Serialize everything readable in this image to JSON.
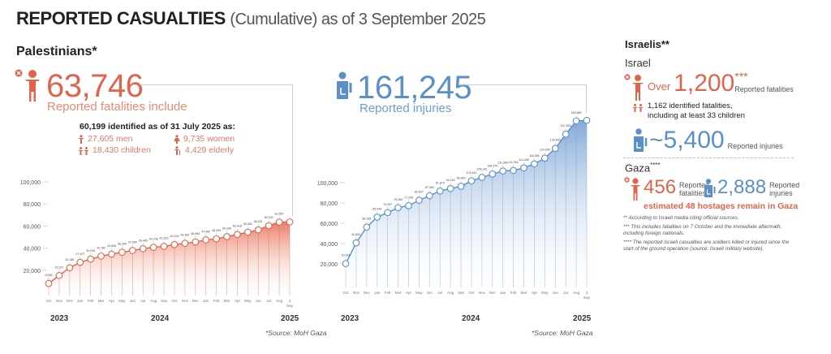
{
  "header": {
    "title_bold": "REPORTED CASUALTIES",
    "title_rest": "(Cumulative) as of 3 September 2025"
  },
  "palestinians": {
    "section_title": "Palestinians*",
    "fatalities": {
      "value": "63,746",
      "caption": "Reported fatalities include",
      "icon": "person-killed-icon",
      "color": "#e0644c"
    },
    "identified": {
      "heading": "60,199 identified as of 31 July 2025 as:",
      "items": [
        {
          "label": "27,605 men",
          "icon": "man-icon"
        },
        {
          "label": "9,735 women",
          "icon": "woman-icon"
        },
        {
          "label": "18,430 children",
          "icon": "children-icon"
        },
        {
          "label": "4,429 elderly",
          "icon": "elderly-icon"
        }
      ]
    },
    "injuries": {
      "value": "161,245",
      "caption": "Reported injuries",
      "icon": "person-injured-icon",
      "color": "#5a8fc7"
    },
    "source_left": "*Source: MoH Gaza",
    "source_right": "*Source: MoH Gaza"
  },
  "years": {
    "y2023": "2023",
    "y2024": "2024",
    "y2025": "2025"
  },
  "chart_data": [
    {
      "type": "area",
      "title": "Reported fatalities (cumulative)",
      "xlabel": "",
      "ylabel": "",
      "ylim": [
        0,
        100000
      ],
      "yticks": [
        20000,
        40000,
        60000,
        80000,
        100000
      ],
      "ytick_labels": [
        "20,000",
        "40,000",
        "60,000",
        "80,000",
        "100,000"
      ],
      "categories": [
        "Oct",
        "Nov",
        "Dec",
        "Jan",
        "Feb",
        "Mar",
        "Apr",
        "May",
        "Jun",
        "Jul",
        "Aug",
        "Sep",
        "Oct",
        "Nov",
        "Dec",
        "Jan",
        "Feb",
        "Mar",
        "Apr",
        "May",
        "Jun",
        "Jul",
        "Aug",
        "3 Sep"
      ],
      "year_labels": [
        "2023",
        "2024",
        "2025"
      ],
      "values": [
        8005,
        15207,
        22185,
        27107,
        30035,
        32782,
        34535,
        36284,
        37900,
        39445,
        40738,
        41615,
        43204,
        44382,
        45553,
        47460,
        48399,
        50399,
        52418,
        54381,
        56531,
        60332,
        63557,
        63746
      ],
      "value_labels": [
        "8,005",
        "15,207",
        "22,185",
        "27,107",
        "30,035",
        "32,782",
        "34,535",
        "36,284",
        "37,900",
        "39,445",
        "40,738",
        "41,615",
        "43,204",
        "44,382",
        "45,553",
        "47,460",
        "48,399",
        "50,399",
        "52,418",
        "54,381",
        "56,531",
        "60,332",
        "63,557",
        ""
      ],
      "color": "#e0644c",
      "grid": false
    },
    {
      "type": "area",
      "title": "Reported injuries (cumulative)",
      "xlabel": "",
      "ylabel": "",
      "ylim": [
        0,
        170000
      ],
      "yticks": [
        20000,
        40000,
        60000,
        80000,
        100000
      ],
      "ytick_labels": [
        "20,000",
        "40,000",
        "60,000",
        "80,000",
        "100,000"
      ],
      "categories": [
        "Oct",
        "Nov",
        "Dec",
        "Jan",
        "Feb",
        "Mar",
        "Apr",
        "May",
        "Jun",
        "Jul",
        "Aug",
        "Sep",
        "Oct",
        "Nov",
        "Dec",
        "Jan",
        "Feb",
        "Mar",
        "Apr",
        "May",
        "Jun",
        "Jul",
        "Aug",
        "3 Sep"
      ],
      "year_labels": [
        "2023",
        "2024",
        "2025"
      ],
      "values": [
        20242,
        40652,
        56165,
        65949,
        70457,
        75260,
        77208,
        82627,
        87060,
        91673,
        94154,
        96359,
        101641,
        105142,
        108379,
        111380,
        111902,
        114459,
        118391,
        124054,
        133642,
        147643,
        160660,
        161245
      ],
      "value_labels": [
        "20,242",
        "40,652",
        "56,165",
        "65,949",
        "70,457",
        "75,260",
        "77,208",
        "82,627",
        "87,060",
        "91,673",
        "94,154",
        "96,359",
        "101,641",
        "105,142",
        "108,379",
        "111,380",
        "111,902",
        "114,459",
        "118,391",
        "124,054",
        "133,642",
        "147,643",
        "160,660",
        ""
      ],
      "color": "#5a8fc7",
      "grid": false
    }
  ],
  "israelis": {
    "section_title": "Israelis**",
    "israel": {
      "label": "Israel",
      "fatalities_prefix": "Over",
      "fatalities_value": "1,200",
      "fatalities_mark": "***",
      "fatalities_caption": "Reported fatalities",
      "identified_line1": "1,162 identified fatalities,",
      "identified_line2": "including at least 33 children",
      "injuries_value": "~5,400",
      "injuries_caption": "Reported injuries"
    },
    "gaza": {
      "label": "Gaza",
      "label_mark": "****",
      "fatalities_value": "456",
      "fatalities_caption_1": "Reported",
      "fatalities_caption_2": "fatalities",
      "injuries_value": "2,888",
      "injuries_caption_1": "Reported",
      "injuries_caption_2": "injuries",
      "hostages": "estimated 48 hostages remain in Gaza"
    },
    "footnotes": [
      "** According to Israeli media citing official sources.",
      "*** This includes fatalities on 7 October and the immediate aftermath, including foreign nationals.",
      "**** The reported Israeli casualties are soldiers killed or injured since the start of the ground operation (source: Israeli military website)."
    ]
  }
}
